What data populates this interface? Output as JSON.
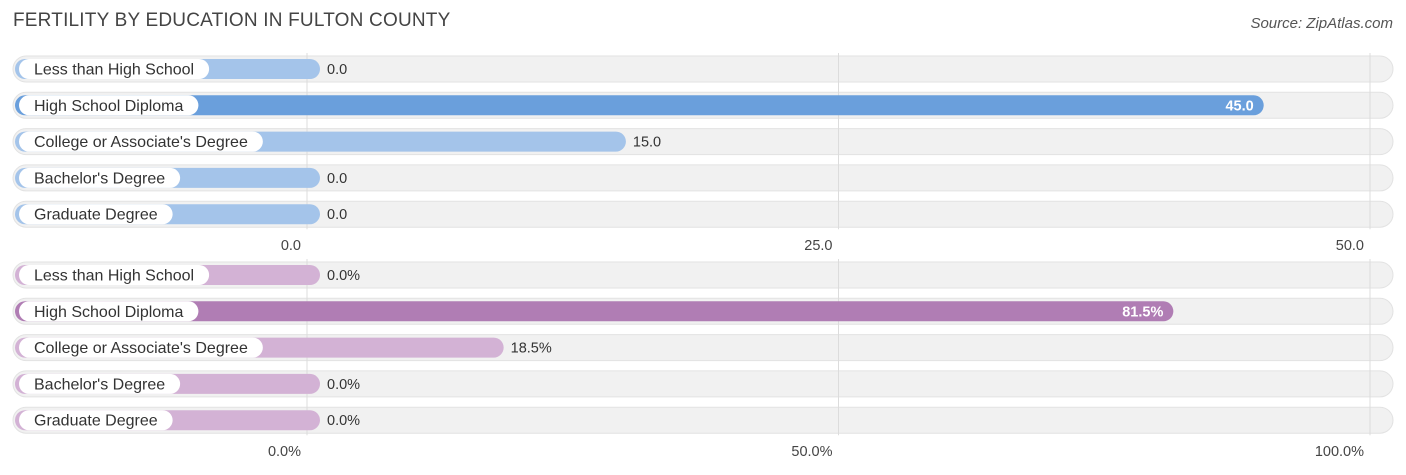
{
  "header": {
    "title": "FERTILITY BY EDUCATION IN FULTON COUNTY",
    "source": "Source: ZipAtlas.com"
  },
  "chart_data": [
    {
      "type": "bar",
      "orientation": "horizontal",
      "categories": [
        "Less than High School",
        "High School Diploma",
        "College or Associate's Degree",
        "Bachelor's Degree",
        "Graduate Degree"
      ],
      "values": [
        0.0,
        45.0,
        15.0,
        0.0,
        0.0
      ],
      "value_labels": [
        "0.0",
        "45.0",
        "15.0",
        "0.0",
        "0.0"
      ],
      "xlim": [
        0,
        50
      ],
      "ticks": [
        0,
        25,
        50
      ],
      "tick_labels": [
        "0.0",
        "25.0",
        "50.0"
      ],
      "colors": {
        "bar": "#a4c4ea",
        "highlight": "#6a9fdc"
      }
    },
    {
      "type": "bar",
      "orientation": "horizontal",
      "categories": [
        "Less than High School",
        "High School Diploma",
        "College or Associate's Degree",
        "Bachelor's Degree",
        "Graduate Degree"
      ],
      "values": [
        0.0,
        81.5,
        18.5,
        0.0,
        0.0
      ],
      "value_labels": [
        "0.0%",
        "81.5%",
        "18.5%",
        "0.0%",
        "0.0%"
      ],
      "xlim": [
        0,
        100
      ],
      "ticks": [
        0,
        50,
        100
      ],
      "tick_labels": [
        "0.0%",
        "50.0%",
        "100.0%"
      ],
      "colors": {
        "bar": "#d3b2d5",
        "highlight": "#b07db4"
      }
    }
  ]
}
